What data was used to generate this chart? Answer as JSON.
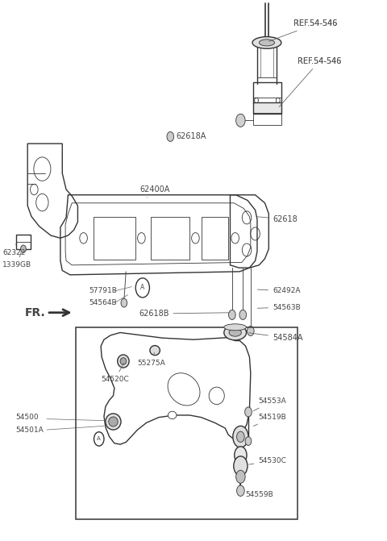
{
  "bg_color": "#ffffff",
  "line_color": "#333333",
  "label_color": "#444444",
  "ref_color": "#555555",
  "labels": {
    "REF54546_top": "REF.54-546",
    "REF54546_bot": "REF.54-546",
    "62618A": "62618A",
    "62400A": "62400A",
    "62618": "62618",
    "62322": "62322",
    "1339GB": "1339GB",
    "57791B": "57791B",
    "54564B": "54564B",
    "62492A": "62492A",
    "54563B": "54563B",
    "62618B": "62618B",
    "54584A": "54584A",
    "55275A": "55275A",
    "54520C": "54520C",
    "54553A": "54553A",
    "54500": "54500",
    "54501A": "54501A",
    "54519B": "54519B",
    "54530C": "54530C",
    "54559B": "54559B",
    "FR": "FR."
  }
}
